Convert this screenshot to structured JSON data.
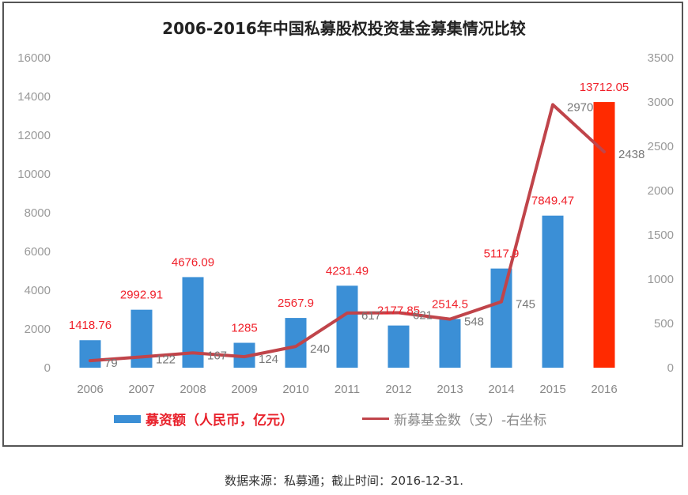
{
  "chart_data": {
    "type": "bar",
    "title": "2006-2016年中国私募股权投资基金募集情况比较",
    "categories": [
      "2006",
      "2007",
      "2008",
      "2009",
      "2010",
      "2011",
      "2012",
      "2013",
      "2014",
      "2015",
      "2016"
    ],
    "series": [
      {
        "name": "募资额（人民币，亿元）",
        "type": "bar",
        "axis": "left",
        "color": "#3b8fd6",
        "highlight": {
          "category": "2016",
          "color": "#ff2a00"
        },
        "values": [
          1418.76,
          2992.91,
          4676.09,
          1285,
          2567.9,
          4231.49,
          2177.85,
          2514.5,
          5117.9,
          7849.47,
          13712.05
        ],
        "labels": [
          "1418.76",
          "2992.91",
          "4676.09",
          "1285",
          "2567.9",
          "4231.49",
          "2177.85",
          "2514.5",
          "5117.9",
          "7849.47",
          "13712.05"
        ]
      },
      {
        "name": "新募基金数（支）-右坐标",
        "type": "line",
        "axis": "right",
        "color": "#c0444a",
        "values": [
          79,
          122,
          167,
          124,
          240,
          617,
          621,
          548,
          745,
          2970,
          2438
        ],
        "labels": [
          "79",
          "122",
          "167",
          "124",
          "240",
          "617",
          "621",
          "548",
          "745",
          "2970",
          "2438"
        ]
      }
    ],
    "left_axis": {
      "min": 0,
      "max": 16000,
      "step": 2000,
      "ticks": [
        "0",
        "2000",
        "4000",
        "6000",
        "8000",
        "10000",
        "12000",
        "14000",
        "16000"
      ]
    },
    "right_axis": {
      "min": 0,
      "max": 3500,
      "step": 500,
      "ticks": [
        "0",
        "500",
        "1000",
        "1500",
        "2000",
        "2500",
        "3000",
        "3500"
      ]
    },
    "grid": false,
    "legend_position": "bottom"
  },
  "legend": {
    "bar_label": "募资额（人民币，亿元）",
    "line_label": "新募基金数（支）-右坐标"
  },
  "source_note": "数据来源：私募通；截止时间：2016-12-31."
}
